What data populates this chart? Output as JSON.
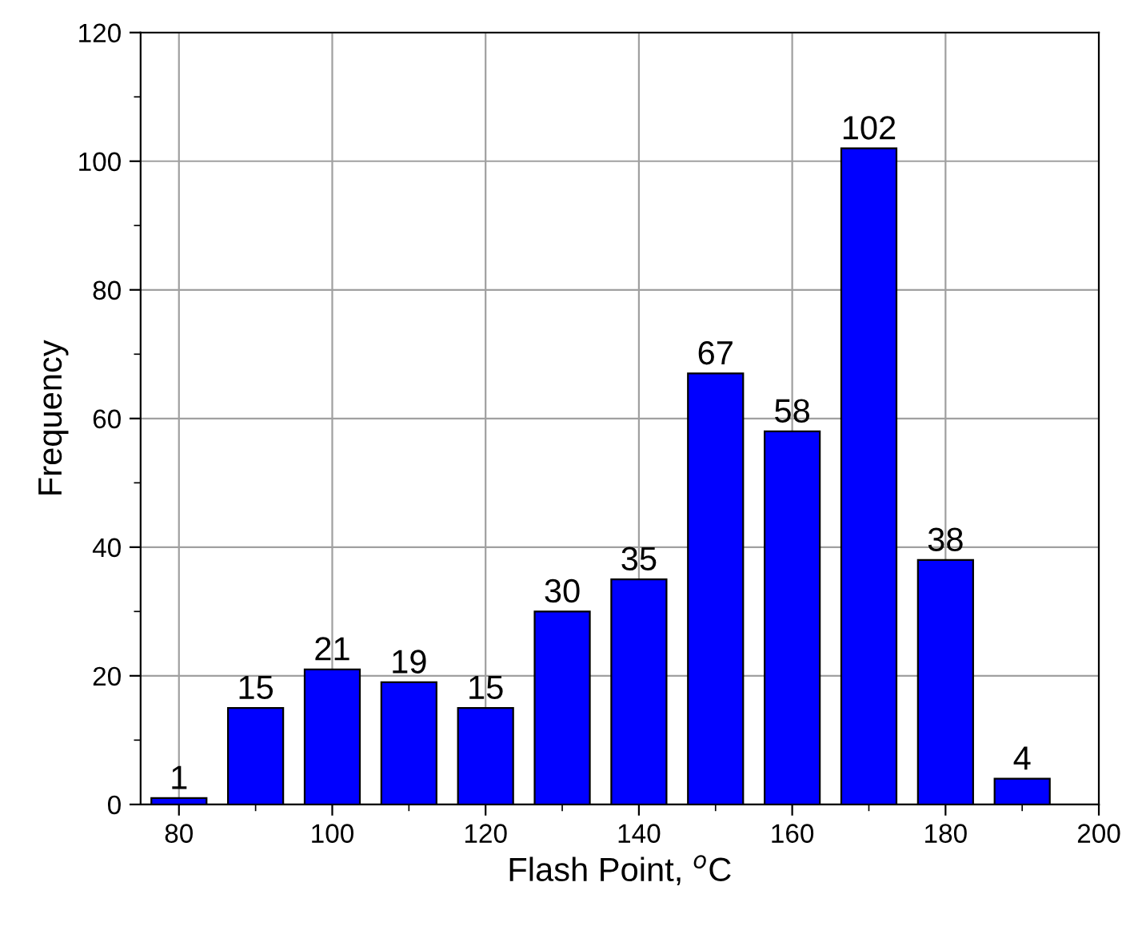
{
  "chart_data": {
    "type": "bar",
    "xlabel": "Flash Point, $^{o}$C",
    "ylabel": "Frequency",
    "x": [
      80,
      90,
      100,
      110,
      120,
      130,
      140,
      150,
      160,
      170,
      180,
      190
    ],
    "values": [
      1,
      15,
      21,
      19,
      15,
      30,
      35,
      67,
      58,
      102,
      38,
      4
    ],
    "color": "#0000ff",
    "data_labels": true,
    "grid": true,
    "xlim": [
      75,
      200
    ],
    "xticks": [
      80,
      100,
      120,
      140,
      160,
      180,
      200
    ],
    "ylim": [
      0,
      120
    ],
    "yticks": [
      0,
      20,
      40,
      60,
      80,
      100,
      120
    ]
  }
}
